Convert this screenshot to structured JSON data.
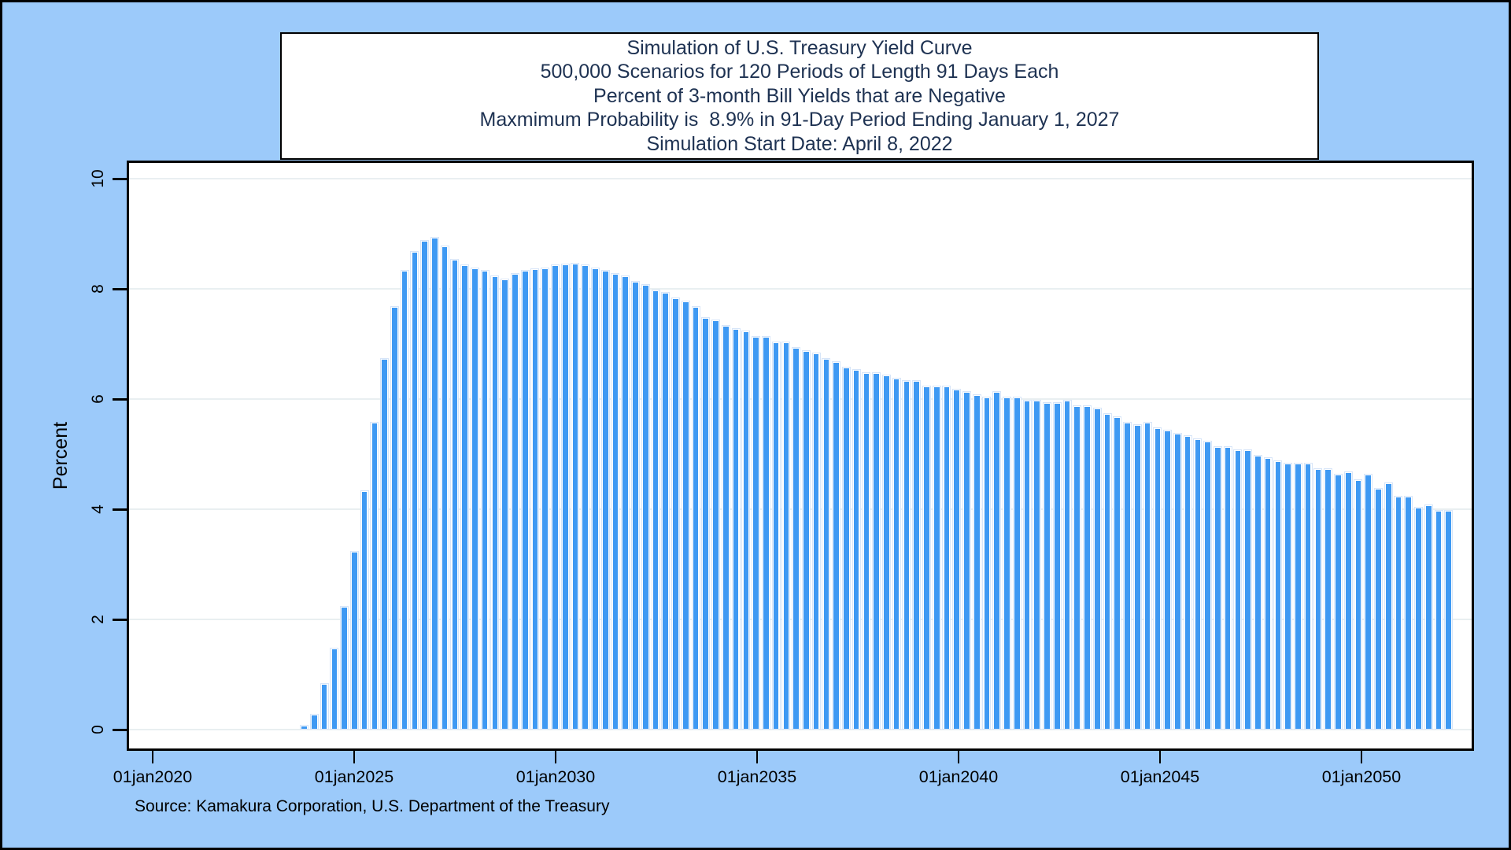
{
  "title_box": {
    "lines": [
      "Simulation of U.S. Treasury Yield Curve",
      "500,000 Scenarios for 120 Periods of Length 91 Days Each",
      "Percent of 3-month Bill Yields that are Negative",
      "Maxmimum Probability is  8.9% in 91-Day Period Ending January 1, 2027",
      "Simulation Start Date: April 8, 2022"
    ]
  },
  "source_note": "Source: Kamakura Corporation, U.S. Department of the Treasury",
  "colors": {
    "background": "#9CCAFA",
    "plot_background": "#FFFFFF",
    "bar_fill": "#3E99F3",
    "bar_outline": "#D7E5F8",
    "gridline": "#E9EFF1",
    "frame": "#000000",
    "title_text": "#1E3252",
    "axis_text": "#000000"
  },
  "chart_data": {
    "type": "bar",
    "title": "Simulation of U.S. Treasury Yield Curve",
    "ylabel": "Percent",
    "xlabel": "",
    "ylim": [
      0,
      10
    ],
    "y_ticks": [
      0,
      2,
      4,
      6,
      8,
      10
    ],
    "x_tick_labels": [
      "01jan2020",
      "01jan2025",
      "01jan2030",
      "01jan2035",
      "01jan2040",
      "01jan2045",
      "01jan2050"
    ],
    "x_tick_years": [
      2020,
      2025,
      2030,
      2035,
      2040,
      2045,
      2050
    ],
    "grid": true,
    "legend": "none",
    "simulation_start_date": "April 8, 2022",
    "period_length_days": 91,
    "total_periods": 120,
    "first_bar_period_index": 6,
    "first_bar_period_end_approx": "Oct 2023",
    "last_bar_period_end_approx": "Apr 2052",
    "peak": {
      "value": 8.9,
      "period_end": "January 1, 2027"
    },
    "values_unit": "percent of scenarios with negative 3-month bill yield",
    "values": [
      0.05,
      0.25,
      0.8,
      1.45,
      2.2,
      3.2,
      4.3,
      5.55,
      6.7,
      7.65,
      8.3,
      8.65,
      8.85,
      8.9,
      8.75,
      8.5,
      8.4,
      8.35,
      8.3,
      8.2,
      8.15,
      8.25,
      8.3,
      8.33,
      8.35,
      8.4,
      8.42,
      8.43,
      8.4,
      8.35,
      8.3,
      8.25,
      8.2,
      8.1,
      8.05,
      7.95,
      7.9,
      7.8,
      7.75,
      7.65,
      7.45,
      7.4,
      7.3,
      7.25,
      7.2,
      7.1,
      7.1,
      7.0,
      7.0,
      6.9,
      6.85,
      6.8,
      6.7,
      6.65,
      6.55,
      6.5,
      6.45,
      6.45,
      6.4,
      6.35,
      6.3,
      6.3,
      6.2,
      6.2,
      6.2,
      6.15,
      6.1,
      6.05,
      6.0,
      6.1,
      6.0,
      6.0,
      5.95,
      5.95,
      5.9,
      5.9,
      5.95,
      5.85,
      5.85,
      5.8,
      5.7,
      5.65,
      5.55,
      5.5,
      5.55,
      5.45,
      5.4,
      5.35,
      5.3,
      5.25,
      5.2,
      5.1,
      5.1,
      5.05,
      5.05,
      4.95,
      4.9,
      4.85,
      4.8,
      4.8,
      4.8,
      4.7,
      4.7,
      4.6,
      4.65,
      4.5,
      4.6,
      4.35,
      4.45,
      4.2,
      4.2,
      4.0,
      4.05,
      3.95,
      3.95
    ]
  }
}
